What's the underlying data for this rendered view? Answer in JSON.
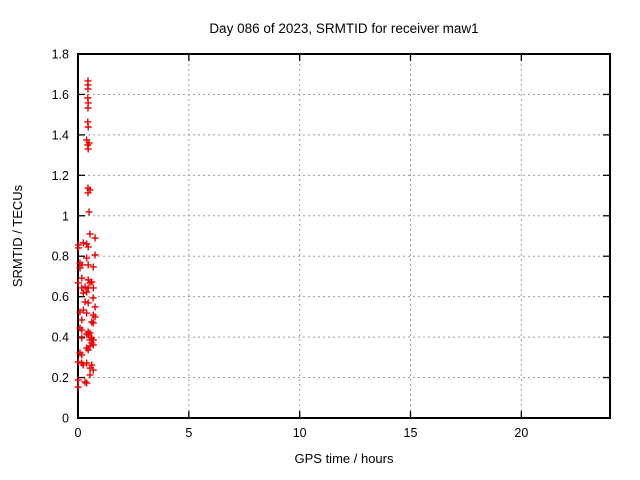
{
  "figure": {
    "background": "#ffffff",
    "border_color": "#000000",
    "grid_color": "#9e9e9e",
    "text_color": "#000000"
  },
  "chart_data": {
    "type": "scatter",
    "title": "Day 086 of 2023, SRMTID for receiver maw1",
    "xlabel": "GPS time / hours",
    "ylabel": "SRMTID / TECUs",
    "xlim": [
      0,
      24
    ],
    "ylim": [
      0,
      1.8
    ],
    "grid": true,
    "legend_position": "none",
    "marker": {
      "shape": "plus",
      "color": "#ee0000",
      "size": 7
    },
    "xticks": {
      "values": [
        0,
        5,
        10,
        15,
        20
      ],
      "labels": [
        "0",
        "5",
        "10",
        "15",
        "20"
      ]
    },
    "yticks": {
      "values": [
        0,
        0.2,
        0.4,
        0.6,
        0.8,
        1.0,
        1.2,
        1.4,
        1.6,
        1.8
      ],
      "labels": [
        "0",
        "0.2",
        "0.4",
        "0.6",
        "0.8",
        "1",
        "1.2",
        "1.4",
        "1.6",
        "1.8"
      ]
    },
    "series": [
      {
        "name": "SRMTID",
        "points": [
          [
            0.45,
            1.667
          ],
          [
            0.45,
            1.647
          ],
          [
            0.45,
            1.627
          ],
          [
            0.44,
            1.583
          ],
          [
            0.46,
            1.558
          ],
          [
            0.45,
            1.533
          ],
          [
            0.44,
            1.464
          ],
          [
            0.46,
            1.439
          ],
          [
            0.39,
            1.375
          ],
          [
            0.5,
            1.36
          ],
          [
            0.44,
            1.35
          ],
          [
            0.46,
            1.33
          ],
          [
            0.45,
            1.137
          ],
          [
            0.54,
            1.128
          ],
          [
            0.45,
            1.113
          ],
          [
            0.5,
            1.019
          ],
          [
            0.54,
            0.91
          ],
          [
            0.77,
            0.89
          ],
          [
            0.24,
            0.866
          ],
          [
            0.39,
            0.861
          ],
          [
            0.02,
            0.856
          ],
          [
            0.46,
            0.846
          ],
          [
            0.02,
            0.841
          ],
          [
            0.77,
            0.806
          ],
          [
            0.39,
            0.791
          ],
          [
            0.09,
            0.767
          ],
          [
            0.18,
            0.757
          ],
          [
            0.46,
            0.757
          ],
          [
            0.69,
            0.747
          ],
          [
            0.09,
            0.742
          ],
          [
            0.17,
            0.692
          ],
          [
            0.46,
            0.683
          ],
          [
            0.62,
            0.673
          ],
          [
            0.54,
            0.668
          ],
          [
            0.01,
            0.668
          ],
          [
            0.32,
            0.648
          ],
          [
            0.17,
            0.643
          ],
          [
            0.46,
            0.643
          ],
          [
            0.69,
            0.643
          ],
          [
            0.39,
            0.623
          ],
          [
            0.24,
            0.618
          ],
          [
            0.68,
            0.594
          ],
          [
            0.32,
            0.574
          ],
          [
            0.46,
            0.569
          ],
          [
            0.77,
            0.549
          ],
          [
            0.24,
            0.534
          ],
          [
            0.09,
            0.524
          ],
          [
            0.39,
            0.519
          ],
          [
            0.69,
            0.509
          ],
          [
            0.77,
            0.5
          ],
          [
            0.17,
            0.485
          ],
          [
            0.62,
            0.475
          ],
          [
            0.69,
            0.47
          ],
          [
            0.09,
            0.445
          ],
          [
            0.17,
            0.435
          ],
          [
            0.46,
            0.425
          ],
          [
            0.54,
            0.42
          ],
          [
            0.39,
            0.415
          ],
          [
            0.46,
            0.411
          ],
          [
            0.62,
            0.396
          ],
          [
            0.17,
            0.396
          ],
          [
            0.54,
            0.386
          ],
          [
            0.69,
            0.386
          ],
          [
            0.62,
            0.371
          ],
          [
            0.69,
            0.361
          ],
          [
            0.54,
            0.356
          ],
          [
            0.39,
            0.346
          ],
          [
            0.46,
            0.336
          ],
          [
            0.09,
            0.322
          ],
          [
            0.17,
            0.312
          ],
          [
            0.01,
            0.277
          ],
          [
            0.17,
            0.272
          ],
          [
            0.39,
            0.272
          ],
          [
            0.24,
            0.262
          ],
          [
            0.62,
            0.262
          ],
          [
            0.54,
            0.247
          ],
          [
            0.69,
            0.237
          ],
          [
            0.54,
            0.213
          ],
          [
            0.01,
            0.188
          ],
          [
            0.32,
            0.178
          ],
          [
            0.39,
            0.173
          ],
          [
            0.01,
            0.153
          ]
        ]
      }
    ]
  }
}
